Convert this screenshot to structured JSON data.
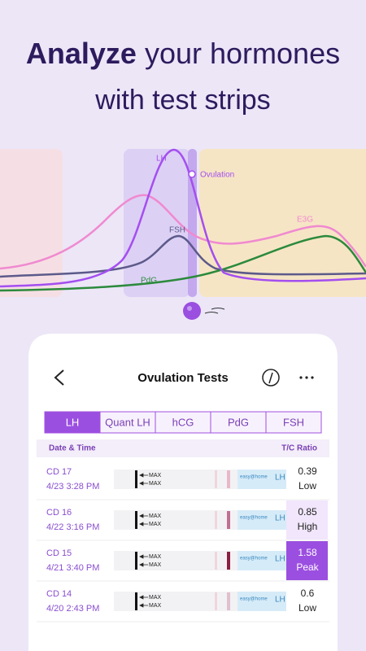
{
  "header": {
    "title_bold": "Analyze",
    "title_rest": "your hormones",
    "title_line2": "with test strips"
  },
  "chart_labels": {
    "lh": "LH",
    "ovulation": "Ovulation",
    "fsh": "FSH",
    "e3g": "E3G",
    "pdg": "PdG"
  },
  "screen": {
    "title": "Ovulation Tests",
    "tabs": [
      "LH",
      "Quant LH",
      "hCG",
      "PdG",
      "FSH"
    ],
    "selected_tab": 0,
    "columns": {
      "date": "Date & Time",
      "ratio": "T/C Ratio"
    },
    "strip_labels": {
      "max": "MAX",
      "brand": "easy@home",
      "test": "LH"
    },
    "rows": [
      {
        "cycle_day": "CD 17",
        "datetime": "4/23 3:28 PM",
        "ratio": 0.39,
        "level": "Low",
        "cell_color": "#ffffff",
        "text_color": "#222222"
      },
      {
        "cycle_day": "CD 16",
        "datetime": "4/22 3:16 PM",
        "ratio": 0.85,
        "level": "High",
        "cell_color": "#f1e6fb",
        "text_color": "#222222"
      },
      {
        "cycle_day": "CD 15",
        "datetime": "4/21 3:40 PM",
        "ratio": 1.58,
        "level": "Peak",
        "cell_color": "#9b4fe0",
        "text_color": "#ffffff"
      },
      {
        "cycle_day": "CD 14",
        "datetime": "4/20 2:43 PM",
        "ratio": 0.6,
        "level": "Low",
        "cell_color": "#ffffff",
        "text_color": "#222222"
      }
    ]
  }
}
